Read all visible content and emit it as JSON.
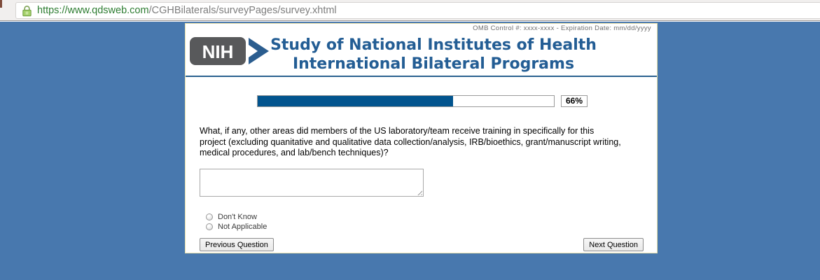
{
  "browser": {
    "url_secure": "https://www.qdsweb.com",
    "url_path": "/CGHBilaterals/surveyPages/survey.xhtml"
  },
  "header": {
    "omb_text": "OMB Control #: xxxx-xxxx - Expiration Date: mm/dd/yyyy",
    "logo_text": "NIH",
    "title_line1": "Study of National Institutes of Health",
    "title_line2": "International Bilateral Programs"
  },
  "progress": {
    "percent_value": 66,
    "percent_label": "66%"
  },
  "question": {
    "text": "What, if any, other areas did members of the US laboratory/team receive training in specifically for this project (excluding quanitative and qualitative data collection/analysis, IRB/bioethics, grant/manuscript writing, medical procedures, and lab/bench techniques)?",
    "answer_value": ""
  },
  "options": [
    {
      "label": "Don't Know",
      "selected": false
    },
    {
      "label": "Not Applicable",
      "selected": false
    }
  ],
  "buttons": {
    "previous_label": "Previous Question",
    "next_label": "Next Question"
  },
  "colors": {
    "page_bg": "#4878ae",
    "title_blue": "#235d94",
    "progress_fill": "#02548e",
    "card_border": "#ece3ab",
    "url_green": "#2e7d32",
    "logo_gray": "#58595b",
    "logo_chevron_blue": "#2b5d8f"
  }
}
